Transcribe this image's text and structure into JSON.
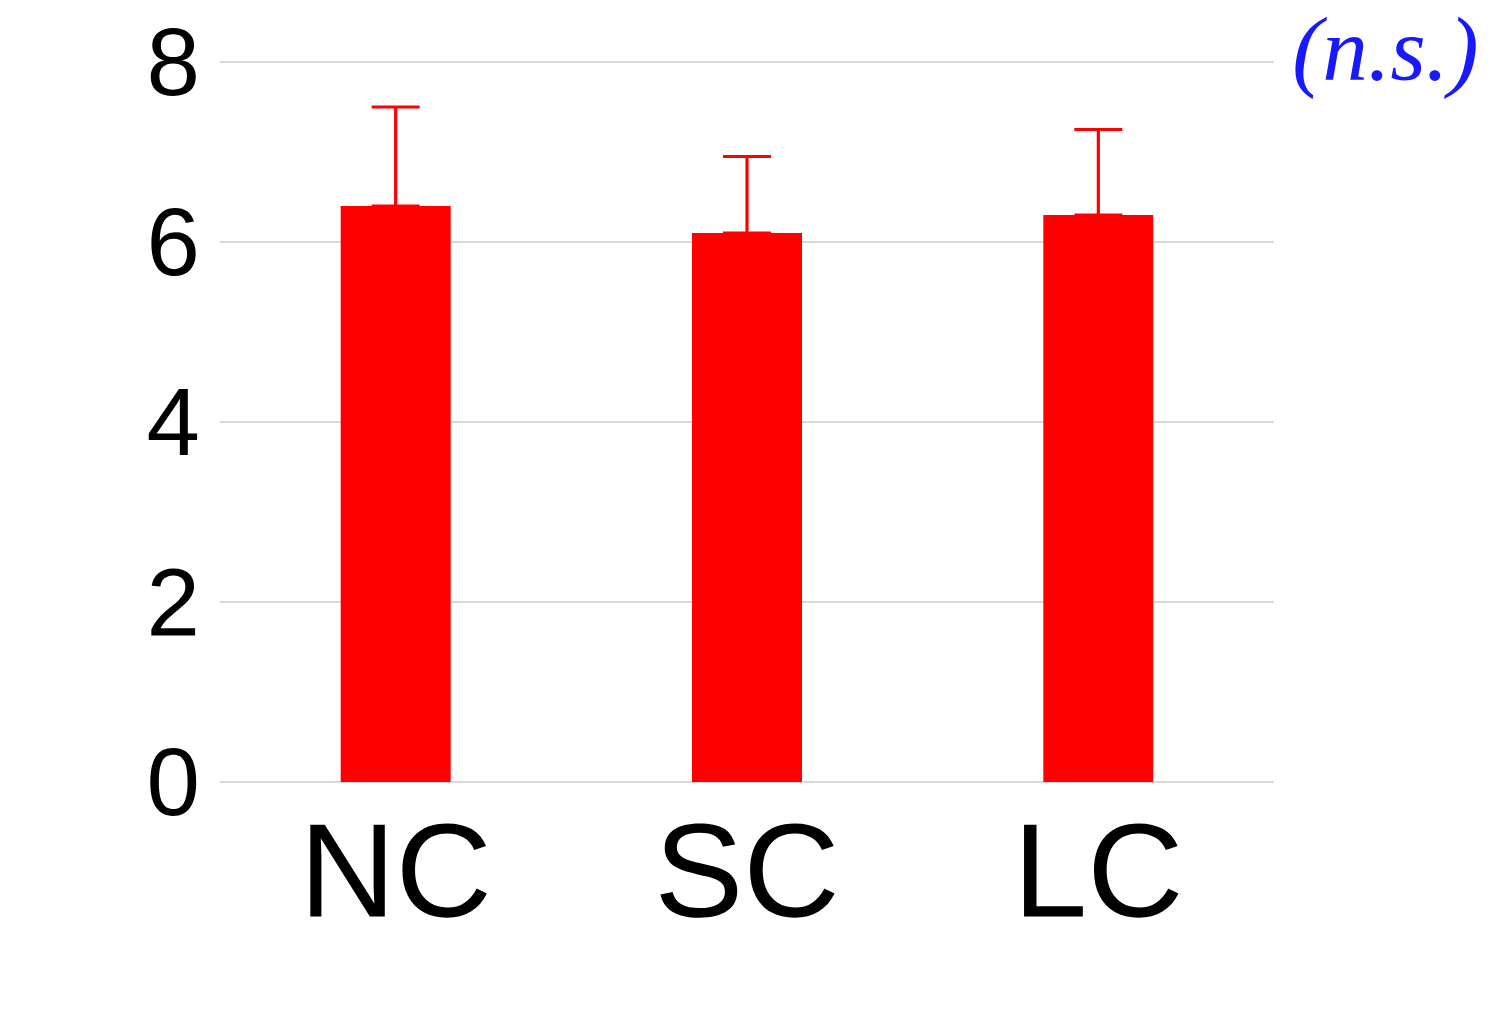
{
  "chart_data": {
    "type": "bar",
    "categories": [
      "NC",
      "SC",
      "LC"
    ],
    "values": [
      6.4,
      6.1,
      6.3
    ],
    "errors": [
      [
        6.4,
        7.5
      ],
      [
        6.1,
        6.95
      ],
      [
        6.3,
        7.25
      ]
    ],
    "color": "#ff0000",
    "ylim": [
      0,
      8
    ],
    "yticks": [
      0,
      2,
      4,
      6,
      8
    ],
    "grid": "y",
    "annotations": [
      "(n.s.)"
    ]
  }
}
